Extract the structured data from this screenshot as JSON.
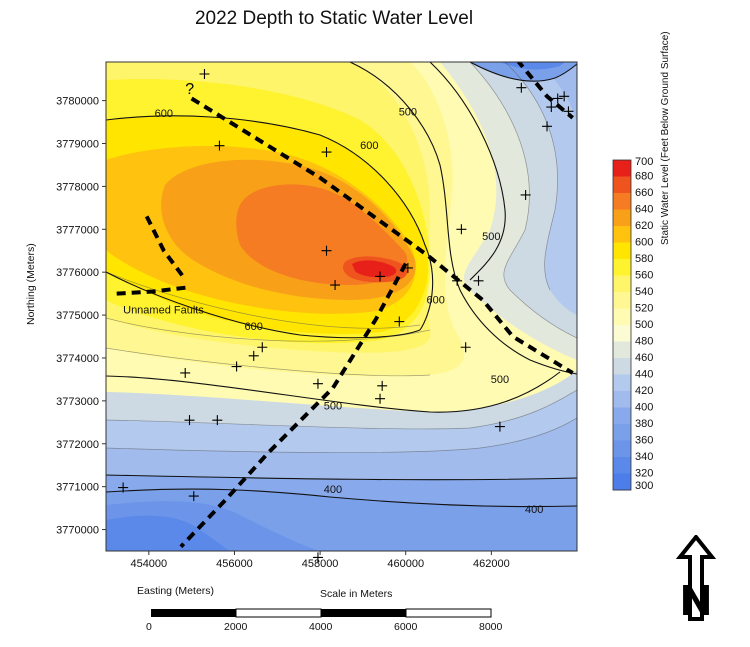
{
  "chart_data": {
    "type": "contour",
    "title": "2022 Depth to Static Water Level",
    "xlabel": "Easting (Meters)",
    "ylabel": "Northing (Meters)",
    "xlim": [
      453000,
      464000
    ],
    "ylim": [
      3769500,
      3780900
    ],
    "x_ticks": [
      "454000",
      "456000",
      "458000",
      "460000",
      "462000"
    ],
    "y_ticks": [
      "3770000",
      "3771000",
      "3772000",
      "3773000",
      "3774000",
      "3775000",
      "3776000",
      "3777000",
      "3778000",
      "3779000",
      "3780000"
    ],
    "contour_labels": [
      {
        "text": "600",
        "x": 454350,
        "y": 3779660
      },
      {
        "text": "600",
        "x": 459150,
        "y": 3778920
      },
      {
        "text": "500",
        "x": 460050,
        "y": 3779700
      },
      {
        "text": "500",
        "x": 462000,
        "y": 3776800
      },
      {
        "text": "600",
        "x": 460700,
        "y": 3775320
      },
      {
        "text": "600",
        "x": 456450,
        "y": 3774700
      },
      {
        "text": "500",
        "x": 462200,
        "y": 3773460
      },
      {
        "text": "500",
        "x": 458300,
        "y": 3772850
      },
      {
        "text": "400",
        "x": 458300,
        "y": 3770900
      },
      {
        "text": "400",
        "x": 463000,
        "y": 3770430
      }
    ],
    "wells": [
      [
        455300,
        3780620
      ],
      [
        458150,
        3778800
      ],
      [
        455650,
        3778950
      ],
      [
        462800,
        3777800
      ],
      [
        461300,
        3777000
      ],
      [
        458150,
        3776500
      ],
      [
        459400,
        3775900
      ],
      [
        460050,
        3776100
      ],
      [
        458350,
        3775700
      ],
      [
        461200,
        3775800
      ],
      [
        461700,
        3775800
      ],
      [
        459850,
        3774850
      ],
      [
        456650,
        3774250
      ],
      [
        456450,
        3774050
      ],
      [
        456050,
        3773800
      ],
      [
        454850,
        3773650
      ],
      [
        457950,
        3773400
      ],
      [
        459450,
        3773350
      ],
      [
        459400,
        3773050
      ],
      [
        461400,
        3774250
      ],
      [
        454950,
        3772550
      ],
      [
        455600,
        3772550
      ],
      [
        462200,
        3772400
      ],
      [
        453400,
        3770980
      ],
      [
        455050,
        3770780
      ],
      [
        457950,
        3769350
      ],
      [
        462700,
        3780300
      ],
      [
        463300,
        3779400
      ],
      [
        463400,
        3779850
      ],
      [
        463550,
        3780050
      ],
      [
        463700,
        3780100
      ],
      [
        463800,
        3779750
      ]
    ],
    "question_mark": {
      "text": "?",
      "x": 454850,
      "y": 3780150
    },
    "fault_label": {
      "text": "Unnamed Faults",
      "x": 453400,
      "y": 3775130
    },
    "faults": [
      [
        [
          455000,
          3780050
        ],
        [
          458000,
          3778200
        ],
        [
          460500,
          3776400
        ],
        [
          461800,
          3775350
        ],
        [
          462500,
          3774500
        ],
        [
          463900,
          3773650
        ]
      ],
      [
        [
          453950,
          3777300
        ],
        [
          454350,
          3776500
        ],
        [
          454800,
          3775900
        ]
      ],
      [
        [
          453250,
          3775500
        ],
        [
          454100,
          3775550
        ],
        [
          454950,
          3775650
        ]
      ],
      [
        [
          460000,
          3776200
        ],
        [
          459300,
          3774900
        ],
        [
          458300,
          3773300
        ],
        [
          456800,
          3771800
        ],
        [
          455800,
          3770700
        ],
        [
          454750,
          3769600
        ]
      ],
      [
        [
          462600,
          3780950
        ],
        [
          463300,
          3780100
        ],
        [
          463900,
          3779600
        ]
      ]
    ]
  },
  "colorbar": {
    "title": "Static Water Level (Feet Below Ground Surface)",
    "levels": [
      700,
      680,
      660,
      640,
      620,
      600,
      580,
      560,
      540,
      520,
      500,
      480,
      460,
      440,
      420,
      400,
      380,
      360,
      340,
      320,
      300
    ],
    "colors": [
      "#e8201a",
      "#f0541e",
      "#f57c22",
      "#f8a118",
      "#ffc20f",
      "#ffe500",
      "#fff22e",
      "#fff56a",
      "#fff792",
      "#fffbb2",
      "#fbfbd4",
      "#e2e8dc",
      "#cdd9e3",
      "#b3caee",
      "#a0bbec",
      "#88a9eb",
      "#7aa0ea",
      "#6c95e9",
      "#5b89e9",
      "#4c7de8",
      "#3c72e8"
    ]
  },
  "scale_bar": {
    "title": "Scale in Meters",
    "labels": [
      "0",
      "2000",
      "4000",
      "6000",
      "8000"
    ]
  },
  "north_arrow": {
    "letter": "N"
  }
}
